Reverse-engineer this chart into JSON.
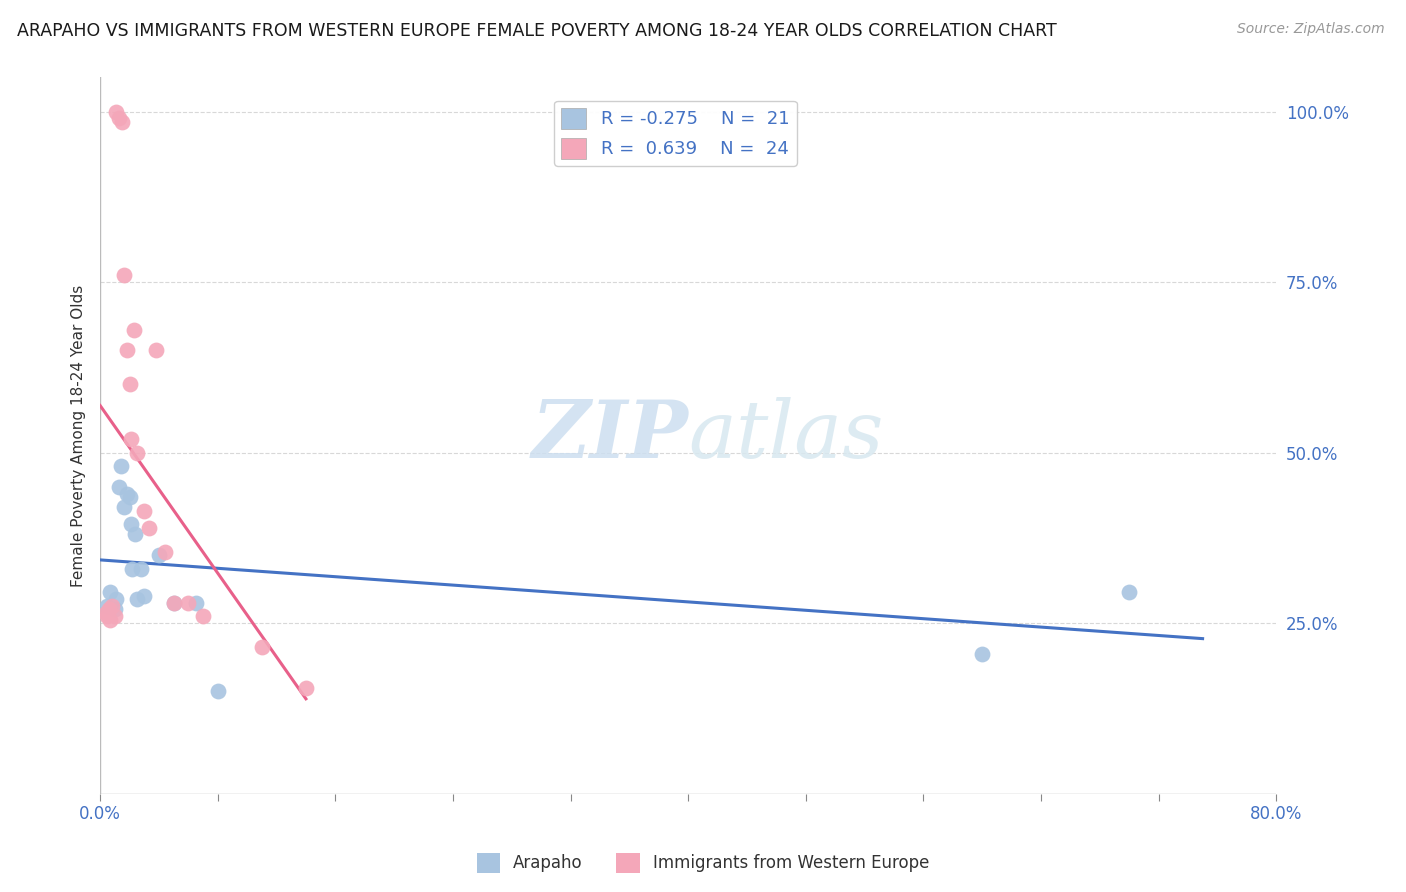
{
  "title": "ARAPAHO VS IMMIGRANTS FROM WESTERN EUROPE FEMALE POVERTY AMONG 18-24 YEAR OLDS CORRELATION CHART",
  "source": "Source: ZipAtlas.com",
  "ylabel": "Female Poverty Among 18-24 Year Olds",
  "watermark": "ZIPatlas",
  "xlim": [
    0.0,
    0.8
  ],
  "ylim": [
    0.0,
    1.05
  ],
  "y_ticks_right": [
    0.25,
    0.5,
    0.75,
    1.0
  ],
  "y_tick_labels_right": [
    "25.0%",
    "50.0%",
    "75.0%",
    "100.0%"
  ],
  "arapaho_color": "#a8c4e0",
  "immigrants_color": "#f4a7b9",
  "arapaho_line_color": "#4472c4",
  "immigrants_line_color": "#e8608a",
  "legend_R_arapaho": "-0.275",
  "legend_N_arapaho": "21",
  "legend_R_immigrants": "0.639",
  "legend_N_immigrants": "24",
  "arapaho_x": [
    0.005,
    0.007,
    0.01,
    0.011,
    0.013,
    0.014,
    0.016,
    0.018,
    0.02,
    0.021,
    0.022,
    0.024,
    0.025,
    0.028,
    0.03,
    0.04,
    0.05,
    0.065,
    0.08,
    0.6,
    0.7
  ],
  "arapaho_y": [
    0.275,
    0.295,
    0.27,
    0.285,
    0.45,
    0.48,
    0.42,
    0.44,
    0.435,
    0.395,
    0.33,
    0.38,
    0.285,
    0.33,
    0.29,
    0.35,
    0.28,
    0.28,
    0.15,
    0.205,
    0.295
  ],
  "immigrants_x": [
    0.004,
    0.005,
    0.006,
    0.007,
    0.008,
    0.01,
    0.011,
    0.013,
    0.015,
    0.016,
    0.018,
    0.02,
    0.021,
    0.023,
    0.025,
    0.03,
    0.033,
    0.038,
    0.044,
    0.05,
    0.06,
    0.07,
    0.11,
    0.14
  ],
  "immigrants_y": [
    0.265,
    0.26,
    0.27,
    0.255,
    0.275,
    0.26,
    1.0,
    0.99,
    0.985,
    0.76,
    0.65,
    0.6,
    0.52,
    0.68,
    0.5,
    0.415,
    0.39,
    0.65,
    0.355,
    0.28,
    0.28,
    0.26,
    0.215,
    0.155
  ],
  "background_color": "#ffffff",
  "grid_color": "#d8d8d8"
}
